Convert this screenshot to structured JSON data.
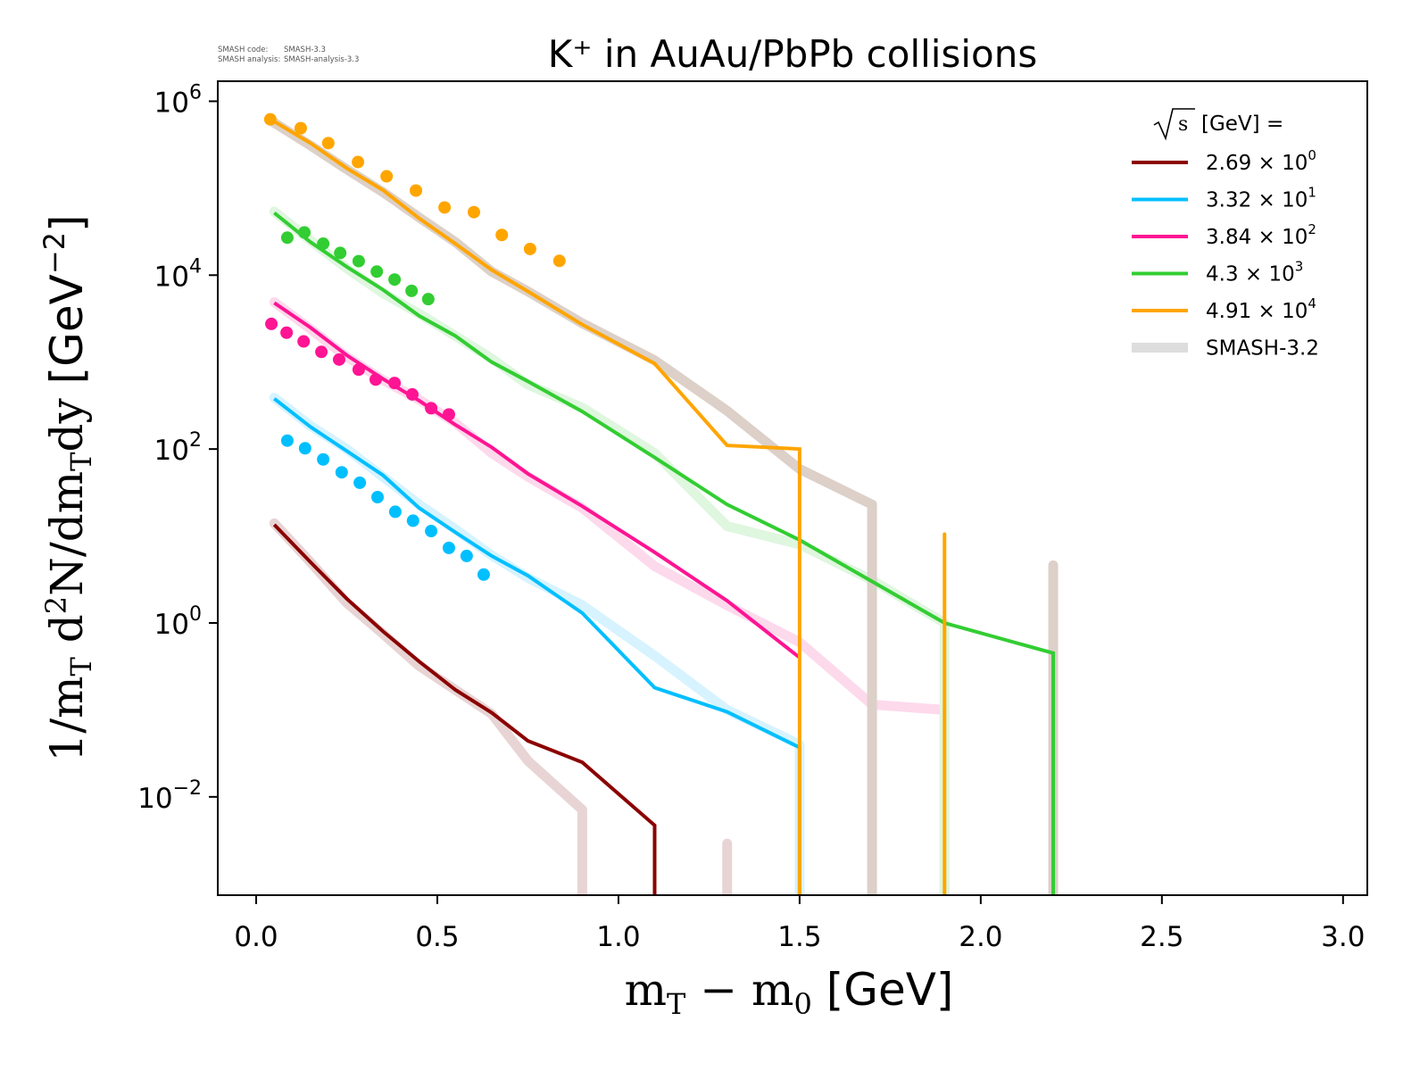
{
  "meta": {
    "code_label": "SMASH code:",
    "code_value": "SMASH-3.3",
    "analysis_label": "SMASH analysis:",
    "analysis_value": "SMASH-analysis-3.3"
  },
  "chart_data": {
    "type": "line",
    "title": "K⁺ in AuAu/PbPb collisions",
    "xlabel": "m_T − m_0 [GeV]",
    "xlabel_parts": {
      "m1": "m",
      "sub1": "T",
      "minus": " − ",
      "m2": "m",
      "sub2": "0",
      "unit": " [GeV]"
    },
    "ylabel": "1/m_T d²N/dm_Tdy [GeV⁻²]",
    "ylabel_parts": {
      "a": "1/m",
      "sub1": "T",
      "b": " d",
      "sup1": "2",
      "c": "N/dm",
      "sub2": "T",
      "d": "dy",
      "unit": " [GeV",
      "sup2": "−2",
      "close": "]"
    },
    "xscale": "linear",
    "yscale": "log",
    "xlim": [
      -0.106,
      3.067
    ],
    "ylim": [
      0.00074,
      1700000
    ],
    "xticks": [
      0.0,
      0.5,
      1.0,
      1.5,
      2.0,
      2.5,
      3.0
    ],
    "xtick_labels": [
      "0.0",
      "0.5",
      "1.0",
      "1.5",
      "2.0",
      "2.5",
      "3.0"
    ],
    "yticks": [
      1000000.0,
      10000.0,
      100.0,
      1.0,
      0.01
    ],
    "ytick_labels": [
      {
        "base": "10",
        "exp": "6"
      },
      {
        "base": "10",
        "exp": "4"
      },
      {
        "base": "10",
        "exp": "2"
      },
      {
        "base": "10",
        "exp": "0"
      },
      {
        "base": "10",
        "exp": "−2"
      }
    ],
    "grid": false,
    "legend": {
      "position": "top-right",
      "title_sqrt": "s",
      "title_rest": " [GeV] =",
      "entries": [
        {
          "label": "2.69 × 10",
          "exp": "0",
          "color": "#8b0000"
        },
        {
          "label": "3.32 × 10",
          "exp": "1",
          "color": "#00bfff"
        },
        {
          "label": "3.84 × 10",
          "exp": "2",
          "color": "#ff1493"
        },
        {
          "label": "4.3 × 10",
          "exp": "3",
          "color": "#32cd32"
        },
        {
          "label": "4.91 × 10",
          "exp": "4",
          "color": "#ffa500"
        },
        {
          "label": "SMASH-3.2",
          "exp": "",
          "color": "#dddddd"
        }
      ]
    },
    "series": [
      {
        "name": "2.69 × 10^0",
        "color": "#8b0000",
        "ref_color": "#e8d4d4",
        "line": {
          "x": [
            0.05,
            0.15,
            0.25,
            0.35,
            0.45,
            0.55,
            0.65,
            0.75,
            0.9,
            1.1,
            1.1
          ],
          "y": [
            13.5,
            5.0,
            1.9,
            0.8,
            0.36,
            0.17,
            0.093,
            0.044,
            0.025,
            0.0047,
            0.0001
          ]
        },
        "ref": {
          "x": [
            0.05,
            0.15,
            0.25,
            0.35,
            0.45,
            0.55,
            0.65,
            0.75,
            0.9,
            0.9
          ],
          "y": [
            14,
            5.0,
            1.7,
            0.75,
            0.32,
            0.17,
            0.09,
            0.026,
            0.0071,
            0.0001
          ]
        },
        "ref_spikes": [
          {
            "x": 1.3,
            "y": 0.0029
          }
        ],
        "data": {
          "x": [],
          "y": []
        }
      },
      {
        "name": "3.32 × 10^1",
        "color": "#00bfff",
        "ref_color": "#d6f3ff",
        "line": {
          "x": [
            0.05,
            0.15,
            0.25,
            0.35,
            0.45,
            0.55,
            0.65,
            0.75,
            0.9,
            1.1,
            1.3,
            1.5,
            1.5
          ],
          "y": [
            380,
            180,
            95,
            50,
            21,
            11,
            5.9,
            3.5,
            1.3,
            0.18,
            0.095,
            0.037,
            0.0001
          ]
        },
        "ref": {
          "x": [
            0.05,
            0.15,
            0.25,
            0.35,
            0.45,
            0.55,
            0.65,
            0.75,
            0.9,
            1.1,
            1.3,
            1.5,
            1.5
          ],
          "y": [
            390,
            185,
            100,
            48,
            23,
            12,
            6.0,
            3.3,
            1.6,
            0.42,
            0.1,
            0.04,
            0.0001
          ]
        },
        "ref_spikes": [],
        "data": {
          "x": [
            0.086,
            0.135,
            0.185,
            0.236,
            0.286,
            0.335,
            0.384,
            0.433,
            0.483,
            0.532,
            0.581,
            0.628
          ],
          "y": [
            125,
            102,
            76,
            54,
            41,
            28,
            19,
            15,
            11.4,
            7.3,
            5.9,
            3.6
          ]
        }
      },
      {
        "name": "3.84 × 10^2",
        "color": "#ff1493",
        "ref_color": "#fdd9ec",
        "line": {
          "x": [
            0.05,
            0.15,
            0.25,
            0.35,
            0.45,
            0.55,
            0.65,
            0.75,
            0.9,
            1.1,
            1.3,
            1.5
          ],
          "y": [
            4800,
            2500,
            1200,
            640,
            360,
            190,
            105,
            52,
            22,
            6.5,
            1.8,
            0.4
          ]
        },
        "ref": {
          "x": [
            0.05,
            0.15,
            0.25,
            0.35,
            0.45,
            0.55,
            0.65,
            0.75,
            0.9,
            1.1,
            1.3,
            1.5,
            1.7,
            1.9,
            1.9
          ],
          "y": [
            4900,
            2400,
            1150,
            620,
            370,
            200,
            90,
            48,
            21,
            4.5,
            1.6,
            0.6,
            0.115,
            0.1,
            0.0001
          ]
        },
        "ref_spikes": [],
        "data": {
          "x": [
            0.042,
            0.084,
            0.131,
            0.18,
            0.229,
            0.283,
            0.33,
            0.382,
            0.431,
            0.483,
            0.532
          ],
          "y": [
            2750,
            2180,
            1730,
            1310,
            1070,
            820,
            630,
            575,
            425,
            295,
            250
          ]
        }
      },
      {
        "name": "4.3 × 10^3",
        "color": "#32cd32",
        "ref_color": "#dff6df",
        "line": {
          "x": [
            0.05,
            0.15,
            0.25,
            0.35,
            0.45,
            0.55,
            0.65,
            0.75,
            0.9,
            1.1,
            1.3,
            1.5,
            1.9,
            2.2,
            2.2
          ],
          "y": [
            52000,
            24000,
            12500,
            6800,
            3400,
            2000,
            1000,
            600,
            270,
            80,
            23,
            9,
            1.0,
            0.45,
            0.0001
          ]
        },
        "ref": {
          "x": [
            0.05,
            0.15,
            0.25,
            0.35,
            0.45,
            0.55,
            0.65,
            0.75,
            0.9,
            1.1,
            1.3,
            1.5,
            1.7,
            1.9,
            1.9
          ],
          "y": [
            54000,
            25000,
            12000,
            6200,
            3600,
            2000,
            1100,
            550,
            300,
            90,
            13,
            8,
            3.1,
            1.0,
            0.0001
          ]
        },
        "ref_spikes": [],
        "data": {
          "x": [
            0.086,
            0.133,
            0.185,
            0.232,
            0.283,
            0.333,
            0.382,
            0.429,
            0.475
          ],
          "y": [
            27000,
            31000,
            23000,
            18000,
            14500,
            11000,
            8900,
            6600,
            5300
          ]
        }
      },
      {
        "name": "4.91 × 10^4",
        "color": "#ffa500",
        "ref_color": "#dcd0c8",
        "line": {
          "x": [
            0.04,
            0.15,
            0.25,
            0.35,
            0.45,
            0.55,
            0.65,
            0.75,
            0.9,
            1.1,
            1.3,
            1.5,
            1.5
          ],
          "y": [
            620000,
            330000,
            170000,
            95000,
            45000,
            23000,
            11500,
            6500,
            2700,
            960,
            110,
            100,
            0.0001
          ]
        },
        "ref": {
          "x": [
            0.04,
            0.15,
            0.25,
            0.35,
            0.45,
            0.55,
            0.65,
            0.75,
            0.9,
            1.1,
            1.3,
            1.5,
            1.7,
            1.7
          ],
          "y": [
            600000,
            310000,
            165000,
            90000,
            46000,
            24000,
            11000,
            6500,
            2800,
            1050,
            275,
            59,
            23,
            0.0001
          ]
        },
        "ref_spikes": [
          {
            "x": 2.2,
            "y": 4.6
          }
        ],
        "spikes": [
          {
            "x": 1.9,
            "y": 10.5
          }
        ],
        "data": {
          "x": [
            0.039,
            0.123,
            0.199,
            0.281,
            0.36,
            0.441,
            0.52,
            0.601,
            0.678,
            0.756,
            0.837
          ],
          "y": [
            620000,
            490000,
            330000,
            200000,
            137000,
            94000,
            60000,
            53000,
            29000,
            20000,
            14600
          ]
        }
      }
    ]
  }
}
